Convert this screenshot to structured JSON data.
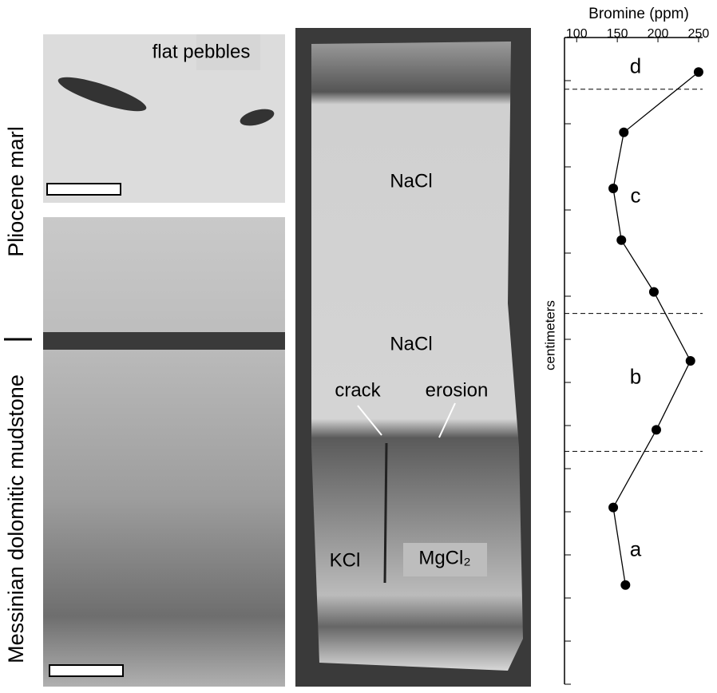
{
  "labels": {
    "flat_pebbles": "flat pebbles",
    "pliocene": "Pliocene marl",
    "messinian": "Messinian dolomitic mudstone",
    "nacl_upper": "NaCl",
    "nacl_lower": "NaCl",
    "crack": "crack",
    "erosion": "erosion",
    "kcl": "KCl",
    "mgcl2": "MgCl₂"
  },
  "chart_data": {
    "type": "line",
    "xlabel": "Bromine (ppm)",
    "ylabel": "centimeters",
    "xlim": [
      85,
      255
    ],
    "xticks": [
      100,
      150,
      200,
      250
    ],
    "ylim": [
      0,
      15
    ],
    "yticks": [
      0,
      1,
      2,
      3,
      4,
      5,
      6,
      7,
      8,
      9,
      10,
      11,
      12,
      13,
      14
    ],
    "y": [
      14.2,
      12.8,
      11.5,
      10.3,
      9.1,
      7.5,
      5.9,
      4.1,
      2.3
    ],
    "values": [
      250,
      158,
      145,
      155,
      195,
      240,
      198,
      145,
      160
    ],
    "color": "#000000",
    "boundaries": [
      13.8,
      8.6,
      5.4
    ],
    "zones": [
      {
        "label": "d",
        "y": 14.3
      },
      {
        "label": "c",
        "y": 11.3
      },
      {
        "label": "b",
        "y": 7.1
      },
      {
        "label": "a",
        "y": 3.1
      }
    ]
  }
}
